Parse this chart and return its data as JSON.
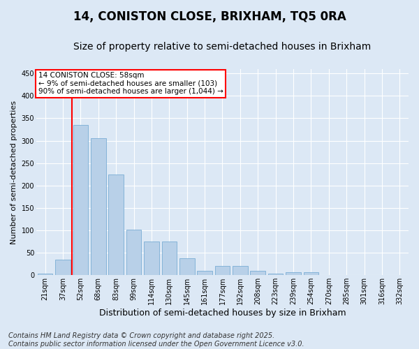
{
  "title": "14, CONISTON CLOSE, BRIXHAM, TQ5 0RA",
  "subtitle": "Size of property relative to semi-detached houses in Brixham",
  "xlabel": "Distribution of semi-detached houses by size in Brixham",
  "ylabel": "Number of semi-detached properties",
  "categories": [
    "21sqm",
    "37sqm",
    "52sqm",
    "68sqm",
    "83sqm",
    "99sqm",
    "114sqm",
    "130sqm",
    "145sqm",
    "161sqm",
    "177sqm",
    "192sqm",
    "208sqm",
    "223sqm",
    "239sqm",
    "254sqm",
    "270sqm",
    "285sqm",
    "301sqm",
    "316sqm",
    "332sqm"
  ],
  "values": [
    3,
    35,
    335,
    305,
    225,
    102,
    75,
    75,
    38,
    10,
    20,
    20,
    10,
    4,
    6,
    6,
    0,
    0,
    1,
    0,
    0
  ],
  "bar_color": "#b8d0e8",
  "bar_edge_color": "#7aadd4",
  "vline_color": "red",
  "vline_x_index": 2,
  "annotation_title": "14 CONISTON CLOSE: 58sqm",
  "annotation_line1": "← 9% of semi-detached houses are smaller (103)",
  "annotation_line2": "90% of semi-detached houses are larger (1,044) →",
  "annotation_box_color": "white",
  "annotation_box_edge_color": "red",
  "footer_line1": "Contains HM Land Registry data © Crown copyright and database right 2025.",
  "footer_line2": "Contains public sector information licensed under the Open Government Licence v3.0.",
  "bg_color": "#dce8f5",
  "plot_bg_color": "#dce8f5",
  "ylim": [
    0,
    460
  ],
  "yticks": [
    0,
    50,
    100,
    150,
    200,
    250,
    300,
    350,
    400,
    450
  ],
  "title_fontsize": 12,
  "subtitle_fontsize": 10,
  "footer_fontsize": 7,
  "ylabel_fontsize": 8,
  "xlabel_fontsize": 9,
  "tick_fontsize": 7,
  "annotation_fontsize": 7.5
}
